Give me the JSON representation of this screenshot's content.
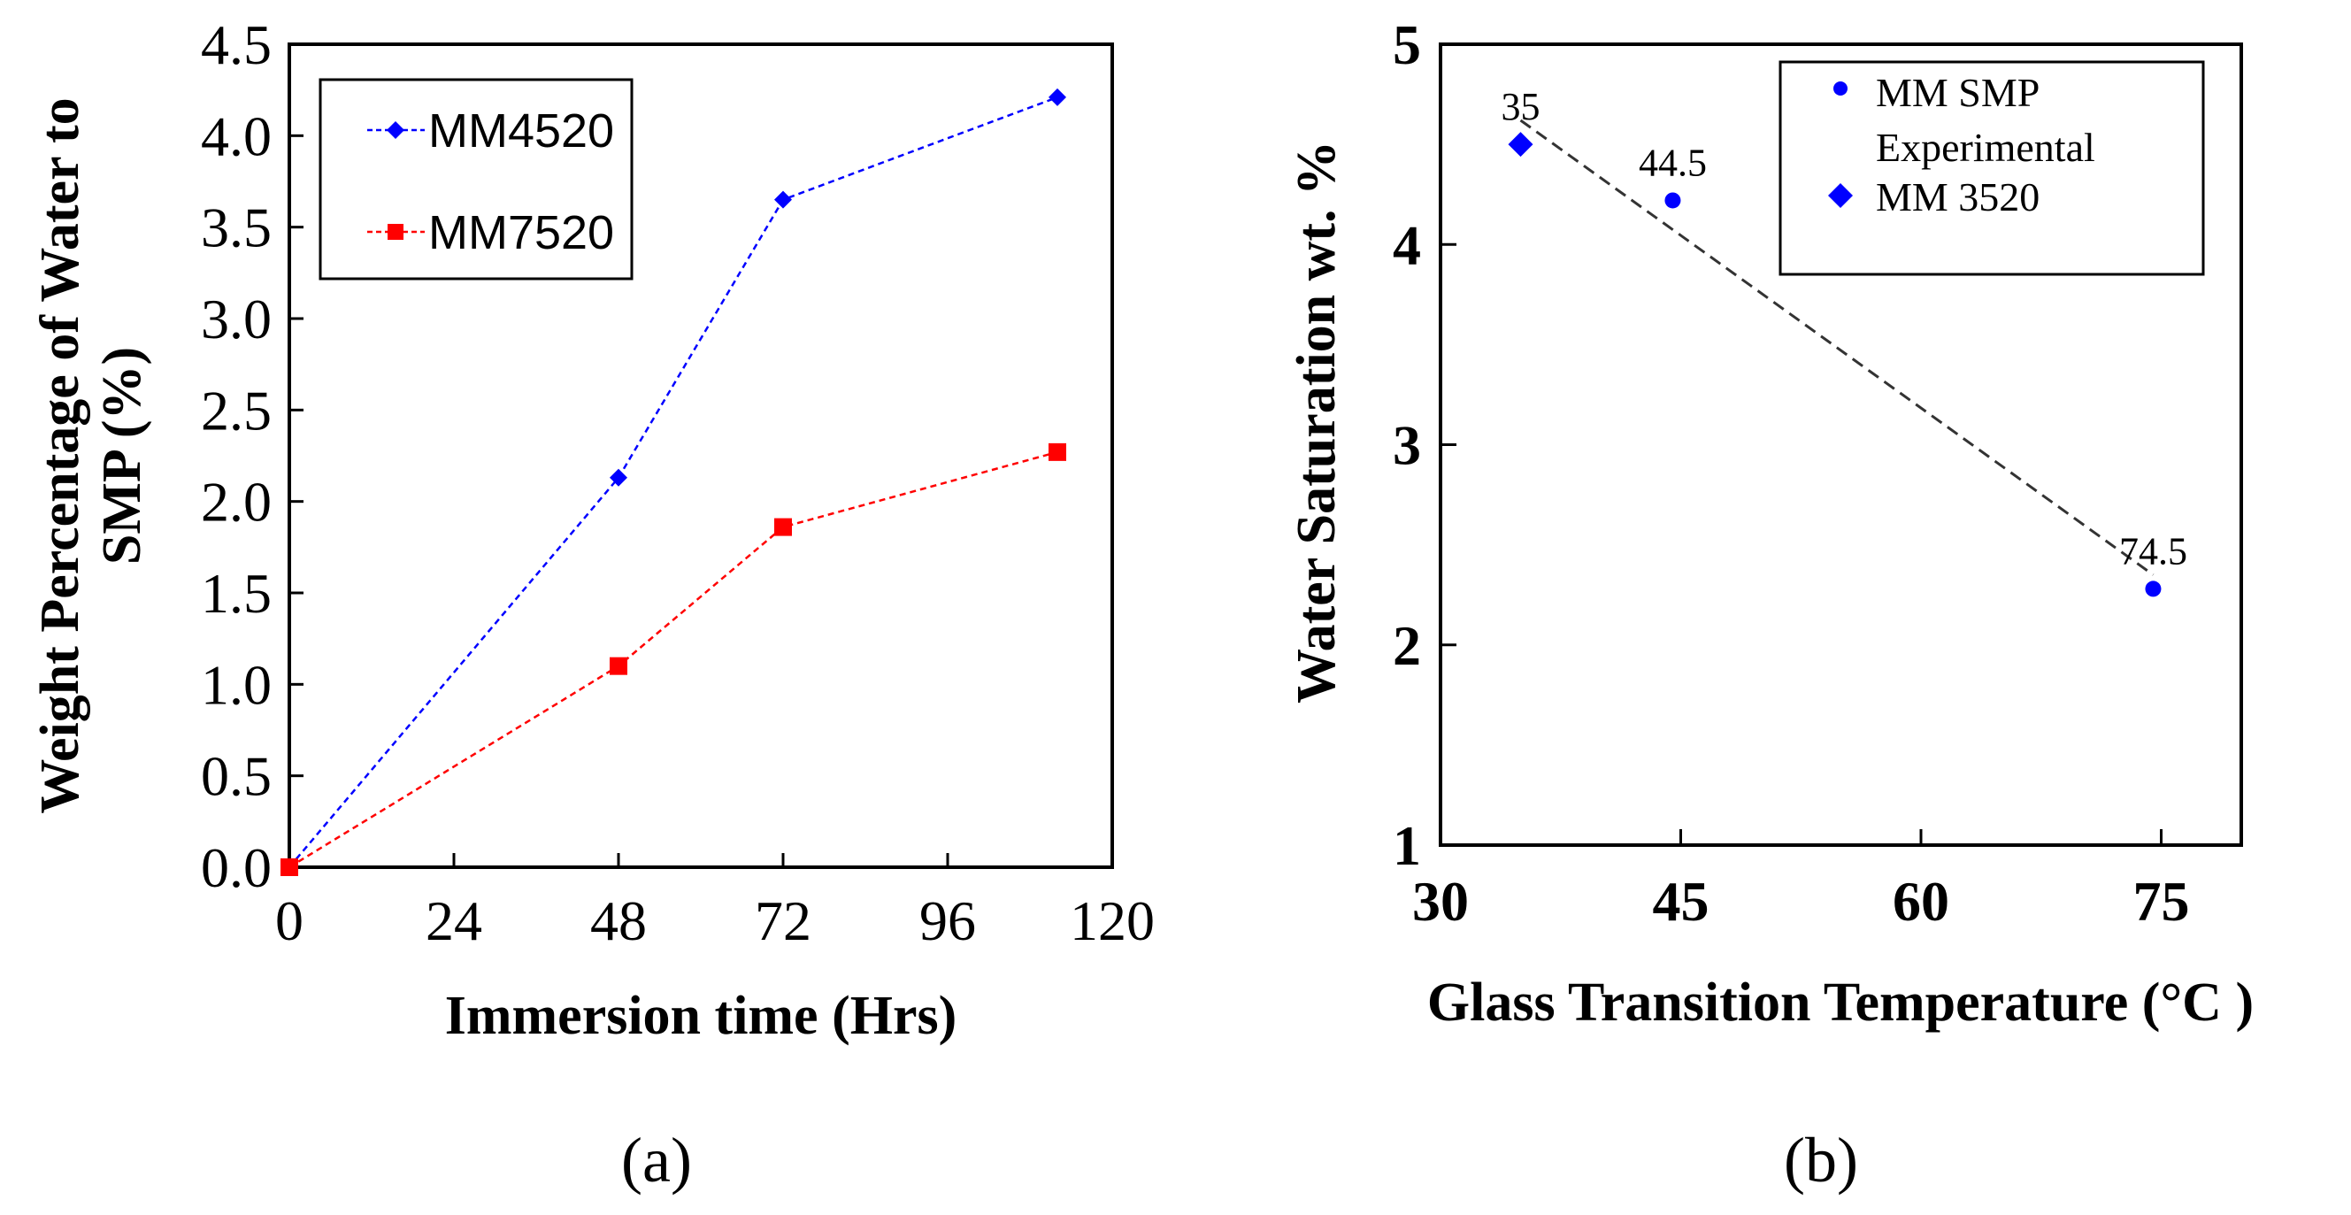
{
  "chart_data": [
    {
      "panel": "(a)",
      "type": "line",
      "xlabel": "Immersion time (Hrs)",
      "ylabel_line1": "Weight Percentage of Water to",
      "ylabel_line2": "SMP (%)",
      "xlim": [
        0,
        120
      ],
      "ylim": [
        0,
        4.5
      ],
      "xticks": [
        "0",
        "24",
        "48",
        "72",
        "96",
        "120"
      ],
      "yticks": [
        "0.0",
        "0.5",
        "1.0",
        "1.5",
        "2.0",
        "2.5",
        "3.0",
        "3.5",
        "4.0",
        "4.5"
      ],
      "x": [
        0,
        48,
        72,
        112
      ],
      "series": [
        {
          "name": "MM4520",
          "color": "#0000ff",
          "marker": "diamond",
          "values": [
            0,
            2.13,
            3.65,
            4.21
          ]
        },
        {
          "name": "MM7520",
          "color": "#ff0000",
          "marker": "square",
          "values": [
            0,
            1.1,
            1.86,
            2.27
          ]
        }
      ],
      "legend": "top-left"
    },
    {
      "panel": "(b)",
      "type": "scatter",
      "xlabel": "Glass Transition Temperature (°C )",
      "ylabel": "Water Saturation wt. %",
      "xlim": [
        30,
        80
      ],
      "ylim": [
        1,
        5
      ],
      "xticks": [
        "30",
        "45",
        "60",
        "75"
      ],
      "yticks": [
        "1",
        "2",
        "3",
        "4",
        "5"
      ],
      "series": [
        {
          "name_line1": "MM SMP",
          "name_line2": "Experimental",
          "color": "#0000ff",
          "marker": "circle",
          "points": [
            {
              "x": 44.5,
              "y": 4.22,
              "label": "44.5"
            },
            {
              "x": 74.5,
              "y": 2.28,
              "label": "74.5"
            }
          ]
        },
        {
          "name": "MM 3520",
          "color": "#0000ff",
          "marker": "diamond",
          "points": [
            {
              "x": 35,
              "y": 4.5,
              "label": "35"
            }
          ]
        }
      ],
      "trendline": {
        "color": "#333333",
        "from": [
          35,
          4.62
        ],
        "to": [
          74.5,
          2.35
        ]
      },
      "legend": "top-right"
    }
  ]
}
